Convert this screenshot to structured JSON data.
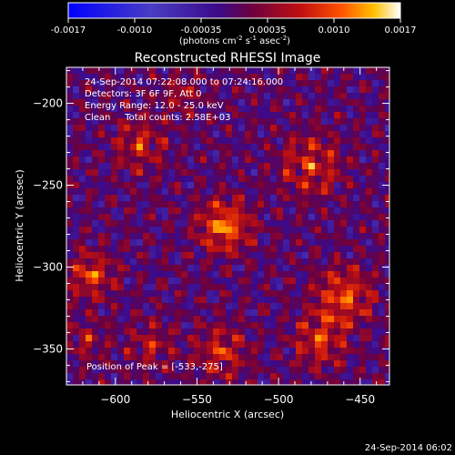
{
  "colorbar": {
    "ticks": [
      "-0.0017",
      "-0.0010",
      "-0.00035",
      "0.00035",
      "0.0010",
      "0.0017"
    ],
    "unit_base": "(photons cm",
    "unit_sup1": "-2",
    "unit_mid1": " s",
    "unit_sup2": "-1",
    "unit_mid2": " asec",
    "unit_sup3": "-2",
    "unit_end": ")"
  },
  "annotations": {
    "time_range": "24-Sep-2014 07:22:08.000 to 07:24:16.000",
    "detectors": "Detectors: 3F 6F 9F, Att 0",
    "energy_range": "Energy Range: 12.0 - 25.0 keV",
    "clean_counts": "Clean     Total counts: 2.58E+03",
    "peak_position": "Position of Peak = [-533,-275]"
  },
  "footer": {
    "timestamp": "24-Sep-2014 06:02"
  },
  "colors": {
    "background": "#000000",
    "map_base": "#3d0a88",
    "colormap": [
      "#0000ff",
      "#4a3cc4",
      "#3b0a8a",
      "#6b0040",
      "#c01010",
      "#ff5000",
      "#ffc000",
      "#ffffff"
    ]
  },
  "chart_data": {
    "type": "heatmap",
    "title": "Reconstructed RHESSI Image",
    "xlabel": "Heliocentric X (arcsec)",
    "ylabel": "Heliocentric Y (arcsec)",
    "xlim": [
      -630,
      -432
    ],
    "ylim": [
      -372,
      -178
    ],
    "x_ticks": [
      -600,
      -550,
      -500,
      -450
    ],
    "y_ticks": [
      -350,
      -300,
      -250,
      -200
    ],
    "x_tick_labels": [
      "−600",
      "−550",
      "−500",
      "−450"
    ],
    "y_tick_labels": [
      "−350",
      "−300",
      "−250",
      "−200"
    ],
    "colorbar_range": [
      -0.0017,
      0.0017
    ],
    "peak": [
      -533,
      -275
    ],
    "sources": [
      {
        "x": -533,
        "y": -275,
        "sigma": 10,
        "amp": 0.0017
      },
      {
        "x": -460,
        "y": -318,
        "sigma": 11,
        "amp": 0.0014
      },
      {
        "x": -475,
        "y": -345,
        "sigma": 10,
        "amp": 0.0012
      },
      {
        "x": -615,
        "y": -305,
        "sigma": 9,
        "amp": 0.0013
      },
      {
        "x": -480,
        "y": -238,
        "sigma": 12,
        "amp": 0.0011
      },
      {
        "x": -585,
        "y": -225,
        "sigma": 10,
        "amp": 0.001
      },
      {
        "x": -578,
        "y": -348,
        "sigma": 9,
        "amp": 0.0008
      },
      {
        "x": -535,
        "y": -352,
        "sigma": 10,
        "amp": 0.0011
      },
      {
        "x": -560,
        "y": -195,
        "sigma": 8,
        "amp": 0.0007
      },
      {
        "x": -618,
        "y": -345,
        "sigma": 8,
        "amp": 0.0007
      }
    ]
  }
}
